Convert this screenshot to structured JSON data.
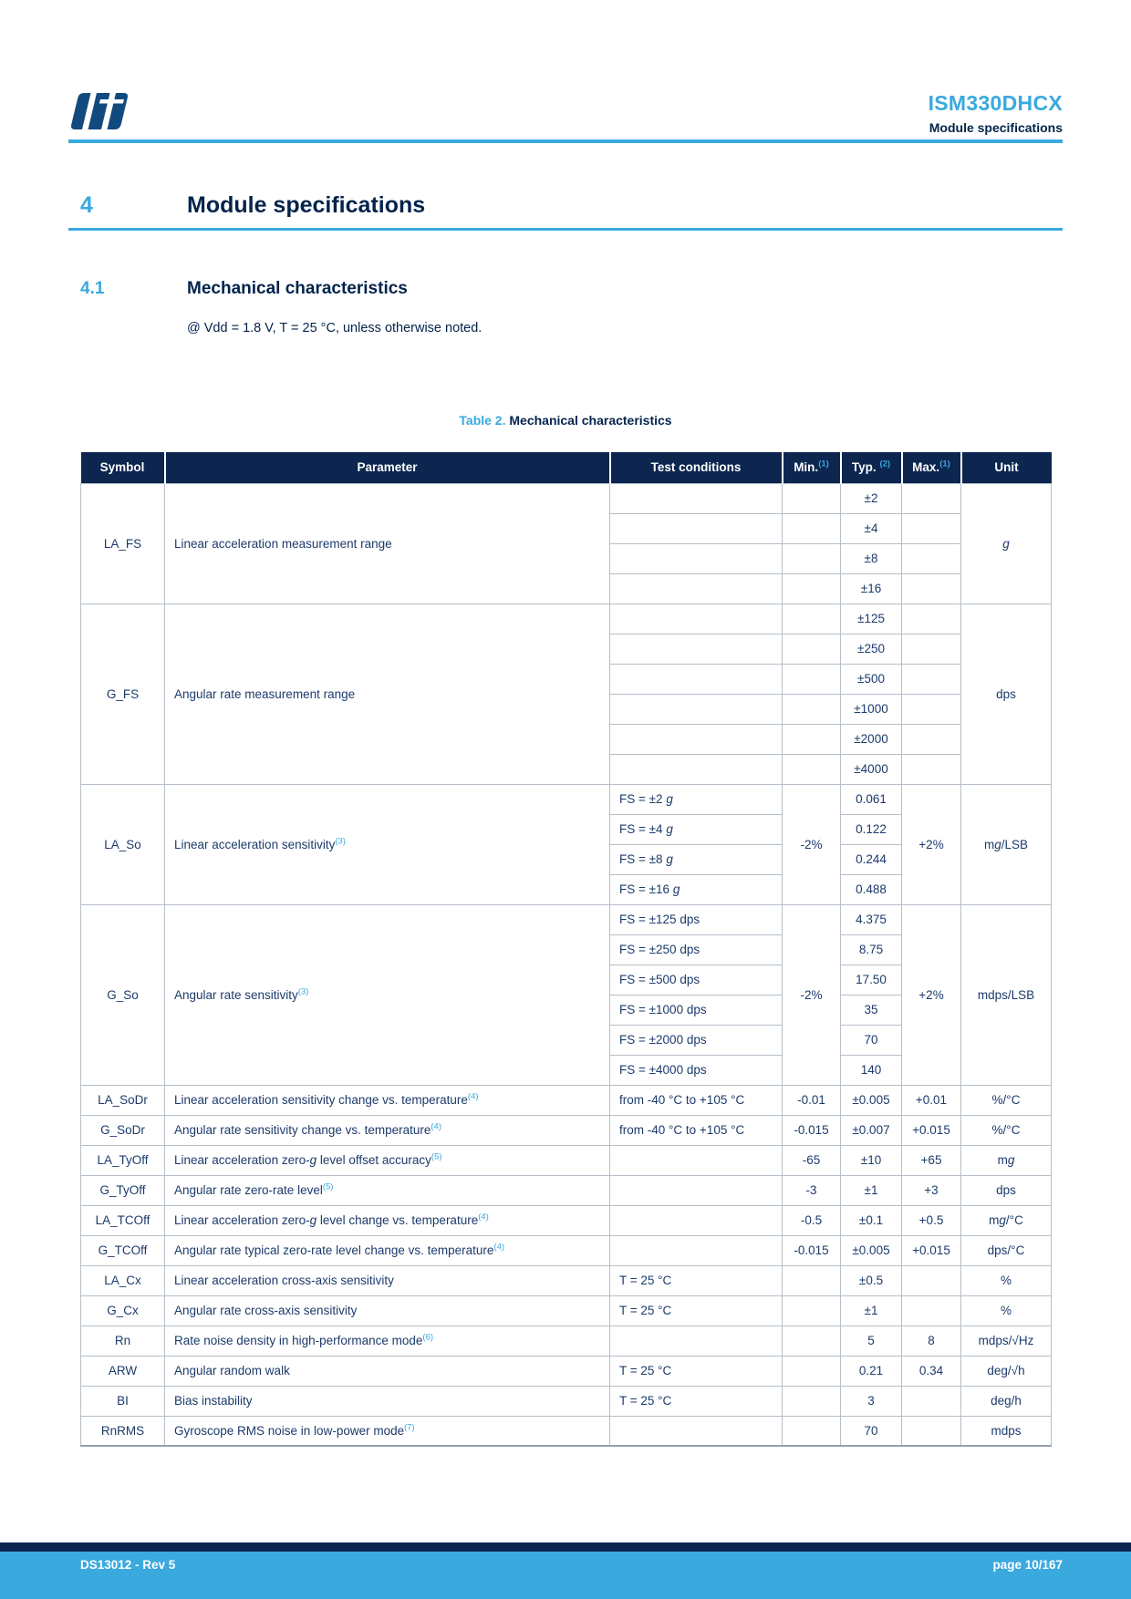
{
  "colors": {
    "accent": "#39A9DE",
    "navy": "#03234B",
    "band": "#0C2650",
    "txt": "#1C3B6B",
    "border": "#B6BFCA",
    "logo": "#114A7E"
  },
  "header": {
    "product": "ISM330DHCX",
    "subtitle": "Module specifications"
  },
  "section": {
    "number": "4",
    "title": "Module specifications"
  },
  "subsection": {
    "number": "4.1",
    "title": "Mechanical characteristics"
  },
  "intro": "@ Vdd = 1.8 V, T = 25 °C, unless otherwise noted.",
  "table_caption": {
    "label": "Table 2.",
    "title": "Mechanical characteristics"
  },
  "footer": {
    "left": "DS13012 - Rev 5",
    "right": "page 10/167"
  },
  "table": {
    "columns": [
      "Symbol",
      "Parameter",
      "Test conditions",
      "Min.^(1)^",
      "Typ. ^(2)^",
      "Max.^(1)^",
      "Unit"
    ],
    "rows": [
      [
        {
          "c": 0,
          "t": "LA_FS",
          "r": 4
        },
        {
          "c": 1,
          "t": "Linear acceleration measurement range",
          "r": 4
        },
        {
          "c": 2,
          "t": ""
        },
        {
          "c": 3,
          "t": ""
        },
        {
          "c": 4,
          "t": "±2"
        },
        {
          "c": 5,
          "t": ""
        },
        {
          "c": 6,
          "t": "*g*",
          "r": 4
        }
      ],
      [
        {
          "c": 2,
          "t": ""
        },
        {
          "c": 3,
          "t": ""
        },
        {
          "c": 4,
          "t": "±4"
        },
        {
          "c": 5,
          "t": ""
        }
      ],
      [
        {
          "c": 2,
          "t": ""
        },
        {
          "c": 3,
          "t": ""
        },
        {
          "c": 4,
          "t": "±8"
        },
        {
          "c": 5,
          "t": ""
        }
      ],
      [
        {
          "c": 2,
          "t": ""
        },
        {
          "c": 3,
          "t": ""
        },
        {
          "c": 4,
          "t": "±16"
        },
        {
          "c": 5,
          "t": ""
        }
      ],
      [
        {
          "c": 0,
          "t": "G_FS",
          "r": 6
        },
        {
          "c": 1,
          "t": "Angular rate measurement range",
          "r": 6
        },
        {
          "c": 2,
          "t": ""
        },
        {
          "c": 3,
          "t": ""
        },
        {
          "c": 4,
          "t": "±125"
        },
        {
          "c": 5,
          "t": ""
        },
        {
          "c": 6,
          "t": "dps",
          "r": 6
        }
      ],
      [
        {
          "c": 2,
          "t": ""
        },
        {
          "c": 3,
          "t": ""
        },
        {
          "c": 4,
          "t": "±250"
        },
        {
          "c": 5,
          "t": ""
        }
      ],
      [
        {
          "c": 2,
          "t": ""
        },
        {
          "c": 3,
          "t": ""
        },
        {
          "c": 4,
          "t": "±500"
        },
        {
          "c": 5,
          "t": ""
        }
      ],
      [
        {
          "c": 2,
          "t": ""
        },
        {
          "c": 3,
          "t": ""
        },
        {
          "c": 4,
          "t": "±1000"
        },
        {
          "c": 5,
          "t": ""
        }
      ],
      [
        {
          "c": 2,
          "t": ""
        },
        {
          "c": 3,
          "t": ""
        },
        {
          "c": 4,
          "t": "±2000"
        },
        {
          "c": 5,
          "t": ""
        }
      ],
      [
        {
          "c": 2,
          "t": ""
        },
        {
          "c": 3,
          "t": ""
        },
        {
          "c": 4,
          "t": "±4000"
        },
        {
          "c": 5,
          "t": ""
        }
      ],
      [
        {
          "c": 0,
          "t": "LA_So",
          "r": 4
        },
        {
          "c": 1,
          "t": "Linear acceleration sensitivity^(3)^",
          "r": 4
        },
        {
          "c": 2,
          "t": "FS = ±2 *g*"
        },
        {
          "c": 3,
          "t": "-2%",
          "r": 4
        },
        {
          "c": 4,
          "t": "0.061"
        },
        {
          "c": 5,
          "t": "+2%",
          "r": 4
        },
        {
          "c": 6,
          "t": "m*g*/LSB",
          "r": 4
        }
      ],
      [
        {
          "c": 2,
          "t": "FS = ±4 *g*"
        },
        {
          "c": 4,
          "t": "0.122"
        }
      ],
      [
        {
          "c": 2,
          "t": "FS = ±8 *g*"
        },
        {
          "c": 4,
          "t": "0.244"
        }
      ],
      [
        {
          "c": 2,
          "t": "FS = ±16 *g*"
        },
        {
          "c": 4,
          "t": "0.488"
        }
      ],
      [
        {
          "c": 0,
          "t": "G_So",
          "r": 6
        },
        {
          "c": 1,
          "t": "Angular rate sensitivity^(3)^",
          "r": 6
        },
        {
          "c": 2,
          "t": "FS = ±125 dps"
        },
        {
          "c": 3,
          "t": "-2%",
          "r": 6
        },
        {
          "c": 4,
          "t": "4.375"
        },
        {
          "c": 5,
          "t": "+2%",
          "r": 6
        },
        {
          "c": 6,
          "t": "mdps/LSB",
          "r": 6
        }
      ],
      [
        {
          "c": 2,
          "t": "FS = ±250 dps"
        },
        {
          "c": 4,
          "t": "8.75"
        }
      ],
      [
        {
          "c": 2,
          "t": "FS = ±500 dps"
        },
        {
          "c": 4,
          "t": "17.50"
        }
      ],
      [
        {
          "c": 2,
          "t": "FS = ±1000 dps"
        },
        {
          "c": 4,
          "t": "35"
        }
      ],
      [
        {
          "c": 2,
          "t": "FS = ±2000 dps"
        },
        {
          "c": 4,
          "t": "70"
        }
      ],
      [
        {
          "c": 2,
          "t": "FS = ±4000 dps"
        },
        {
          "c": 4,
          "t": "140"
        }
      ],
      [
        {
          "c": 0,
          "t": "LA_SoDr"
        },
        {
          "c": 1,
          "t": "Linear acceleration sensitivity change vs. temperature^(4)^"
        },
        {
          "c": 2,
          "t": "from -40 °C to +105 °C"
        },
        {
          "c": 3,
          "t": "-0.01"
        },
        {
          "c": 4,
          "t": "±0.005"
        },
        {
          "c": 5,
          "t": "+0.01"
        },
        {
          "c": 6,
          "t": "%/°C"
        }
      ],
      [
        {
          "c": 0,
          "t": "G_SoDr"
        },
        {
          "c": 1,
          "t": "Angular rate sensitivity change vs. temperature^(4)^"
        },
        {
          "c": 2,
          "t": "from -40 °C to +105 °C"
        },
        {
          "c": 3,
          "t": "-0.015"
        },
        {
          "c": 4,
          "t": "±0.007"
        },
        {
          "c": 5,
          "t": "+0.015"
        },
        {
          "c": 6,
          "t": "%/°C"
        }
      ],
      [
        {
          "c": 0,
          "t": "LA_TyOff"
        },
        {
          "c": 1,
          "t": "Linear acceleration zero-*g* level offset accuracy^(5)^"
        },
        {
          "c": 2,
          "t": ""
        },
        {
          "c": 3,
          "t": "-65"
        },
        {
          "c": 4,
          "t": "±10"
        },
        {
          "c": 5,
          "t": "+65"
        },
        {
          "c": 6,
          "t": "m*g*"
        }
      ],
      [
        {
          "c": 0,
          "t": "G_TyOff"
        },
        {
          "c": 1,
          "t": "Angular rate zero-rate level^(5)^"
        },
        {
          "c": 2,
          "t": ""
        },
        {
          "c": 3,
          "t": "-3"
        },
        {
          "c": 4,
          "t": "±1"
        },
        {
          "c": 5,
          "t": "+3"
        },
        {
          "c": 6,
          "t": "dps"
        }
      ],
      [
        {
          "c": 0,
          "t": "LA_TCOff"
        },
        {
          "c": 1,
          "t": "Linear acceleration zero-*g* level change vs. temperature^(4)^"
        },
        {
          "c": 2,
          "t": ""
        },
        {
          "c": 3,
          "t": "-0.5"
        },
        {
          "c": 4,
          "t": "±0.1"
        },
        {
          "c": 5,
          "t": "+0.5"
        },
        {
          "c": 6,
          "t": "m*g*/°C"
        }
      ],
      [
        {
          "c": 0,
          "t": "G_TCOff"
        },
        {
          "c": 1,
          "t": "Angular rate typical zero-rate level change vs. temperature^(4)^"
        },
        {
          "c": 2,
          "t": ""
        },
        {
          "c": 3,
          "t": "-0.015"
        },
        {
          "c": 4,
          "t": "±0.005"
        },
        {
          "c": 5,
          "t": "+0.015"
        },
        {
          "c": 6,
          "t": "dps/°C"
        }
      ],
      [
        {
          "c": 0,
          "t": "LA_Cx"
        },
        {
          "c": 1,
          "t": "Linear acceleration cross-axis sensitivity"
        },
        {
          "c": 2,
          "t": "T = 25 °C"
        },
        {
          "c": 3,
          "t": ""
        },
        {
          "c": 4,
          "t": "±0.5"
        },
        {
          "c": 5,
          "t": ""
        },
        {
          "c": 6,
          "t": "%"
        }
      ],
      [
        {
          "c": 0,
          "t": "G_Cx"
        },
        {
          "c": 1,
          "t": "Angular rate cross-axis sensitivity"
        },
        {
          "c": 2,
          "t": "T = 25 °C"
        },
        {
          "c": 3,
          "t": ""
        },
        {
          "c": 4,
          "t": "±1"
        },
        {
          "c": 5,
          "t": ""
        },
        {
          "c": 6,
          "t": "%"
        }
      ],
      [
        {
          "c": 0,
          "t": "Rn"
        },
        {
          "c": 1,
          "t": "Rate noise density in high-performance mode^(6)^"
        },
        {
          "c": 2,
          "t": ""
        },
        {
          "c": 3,
          "t": ""
        },
        {
          "c": 4,
          "t": "5"
        },
        {
          "c": 5,
          "t": "8"
        },
        {
          "c": 6,
          "t": "mdps/√Hz"
        }
      ],
      [
        {
          "c": 0,
          "t": "ARW"
        },
        {
          "c": 1,
          "t": "Angular random walk"
        },
        {
          "c": 2,
          "t": "T = 25 °C"
        },
        {
          "c": 3,
          "t": ""
        },
        {
          "c": 4,
          "t": "0.21"
        },
        {
          "c": 5,
          "t": "0.34"
        },
        {
          "c": 6,
          "t": "deg/√h"
        }
      ],
      [
        {
          "c": 0,
          "t": "BI"
        },
        {
          "c": 1,
          "t": "Bias instability"
        },
        {
          "c": 2,
          "t": "T = 25 °C"
        },
        {
          "c": 3,
          "t": ""
        },
        {
          "c": 4,
          "t": "3"
        },
        {
          "c": 5,
          "t": ""
        },
        {
          "c": 6,
          "t": "deg/h"
        }
      ],
      [
        {
          "c": 0,
          "t": "RnRMS"
        },
        {
          "c": 1,
          "t": "Gyroscope RMS noise in low-power mode^(7)^"
        },
        {
          "c": 2,
          "t": ""
        },
        {
          "c": 3,
          "t": ""
        },
        {
          "c": 4,
          "t": "70"
        },
        {
          "c": 5,
          "t": ""
        },
        {
          "c": 6,
          "t": "mdps"
        }
      ]
    ]
  }
}
